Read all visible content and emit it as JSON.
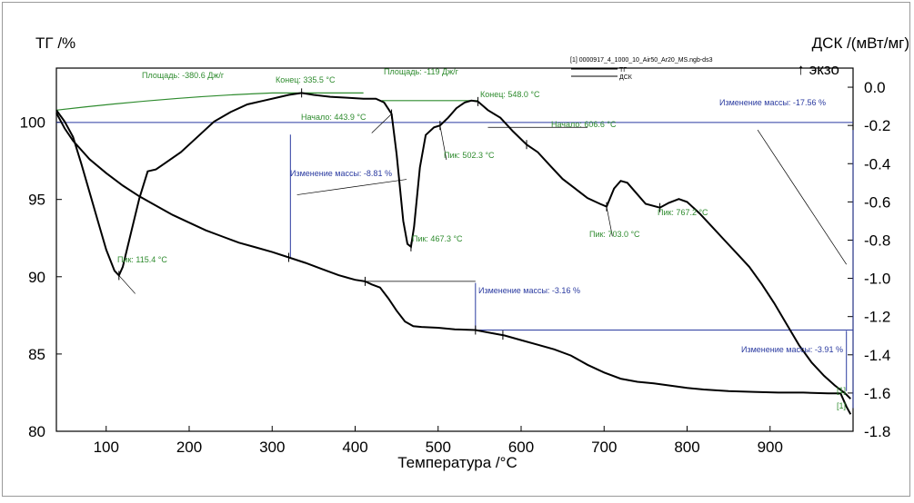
{
  "chart_data": {
    "type": "line",
    "title": "",
    "xlabel": "Температура /°C",
    "ylabel_left": "ТГ /%",
    "ylabel_right": "ДСК /(мВт/мг)",
    "exo_label": "↑ экзо",
    "file_label": "[1] 0000917_4_1000_10_Air50_Ar20_MS.ngb-ds3",
    "legend": [
      "ТГ",
      "ДСК"
    ],
    "xlim": [
      40,
      1000
    ],
    "ylim_left": [
      80,
      103.5
    ],
    "ylim_right": [
      -1.8,
      0.1
    ],
    "x_ticks": [
      100,
      200,
      300,
      400,
      500,
      600,
      700,
      800,
      900
    ],
    "y_left_ticks": [
      80,
      85,
      90,
      95,
      100
    ],
    "y_right_ticks": [
      "0.0",
      "-0.2",
      "-0.4",
      "-0.6",
      "-0.8",
      "-1.0",
      "-1.2",
      "-1.4",
      "-1.6",
      "-1.8"
    ],
    "series": [
      {
        "name": "ТГ",
        "axis": "left",
        "color": "#000000",
        "points": [
          [
            40,
            100.6
          ],
          [
            50,
            99.6
          ],
          [
            60,
            98.8
          ],
          [
            80,
            97.6
          ],
          [
            100,
            96.7
          ],
          [
            120,
            95.9
          ],
          [
            140,
            95.2
          ],
          [
            160,
            94.6
          ],
          [
            180,
            94.0
          ],
          [
            200,
            93.5
          ],
          [
            220,
            93.0
          ],
          [
            240,
            92.6
          ],
          [
            260,
            92.2
          ],
          [
            280,
            91.9
          ],
          [
            300,
            91.6
          ],
          [
            320,
            91.25
          ],
          [
            340,
            90.9
          ],
          [
            360,
            90.5
          ],
          [
            380,
            90.1
          ],
          [
            400,
            89.8
          ],
          [
            412,
            89.7
          ],
          [
            420,
            89.5
          ],
          [
            430,
            89.3
          ],
          [
            440,
            88.6
          ],
          [
            450,
            87.8
          ],
          [
            460,
            87.1
          ],
          [
            470,
            86.8
          ],
          [
            480,
            86.75
          ],
          [
            500,
            86.7
          ],
          [
            520,
            86.6
          ],
          [
            545,
            86.55
          ],
          [
            560,
            86.4
          ],
          [
            580,
            86.2
          ],
          [
            600,
            85.9
          ],
          [
            620,
            85.6
          ],
          [
            640,
            85.3
          ],
          [
            660,
            84.9
          ],
          [
            680,
            84.3
          ],
          [
            700,
            83.8
          ],
          [
            720,
            83.4
          ],
          [
            740,
            83.2
          ],
          [
            760,
            83.1
          ],
          [
            780,
            82.95
          ],
          [
            800,
            82.8
          ],
          [
            820,
            82.7
          ],
          [
            850,
            82.6
          ],
          [
            880,
            82.55
          ],
          [
            910,
            82.5
          ],
          [
            940,
            82.5
          ],
          [
            970,
            82.45
          ],
          [
            985,
            82.45
          ],
          [
            992,
            81.6
          ],
          [
            997,
            81.1
          ]
        ]
      },
      {
        "name": "ДСК",
        "axis": "right",
        "color": "#000000",
        "points": [
          [
            40,
            -0.12
          ],
          [
            50,
            -0.18
          ],
          [
            60,
            -0.26
          ],
          [
            70,
            -0.4
          ],
          [
            80,
            -0.55
          ],
          [
            90,
            -0.7
          ],
          [
            100,
            -0.85
          ],
          [
            110,
            -0.96
          ],
          [
            115.4,
            -0.985
          ],
          [
            120,
            -0.94
          ],
          [
            130,
            -0.76
          ],
          [
            140,
            -0.58
          ],
          [
            150,
            -0.44
          ],
          [
            160,
            -0.43
          ],
          [
            170,
            -0.4
          ],
          [
            190,
            -0.34
          ],
          [
            210,
            -0.26
          ],
          [
            230,
            -0.18
          ],
          [
            250,
            -0.13
          ],
          [
            270,
            -0.09
          ],
          [
            290,
            -0.07
          ],
          [
            310,
            -0.05
          ],
          [
            320,
            -0.04
          ],
          [
            335.5,
            -0.03
          ],
          [
            350,
            -0.04
          ],
          [
            370,
            -0.05
          ],
          [
            390,
            -0.055
          ],
          [
            410,
            -0.06
          ],
          [
            425,
            -0.06
          ],
          [
            435,
            -0.08
          ],
          [
            443.9,
            -0.14
          ],
          [
            450,
            -0.35
          ],
          [
            458,
            -0.7
          ],
          [
            463,
            -0.82
          ],
          [
            467.3,
            -0.835
          ],
          [
            471,
            -0.73
          ],
          [
            478,
            -0.42
          ],
          [
            485,
            -0.25
          ],
          [
            495,
            -0.21
          ],
          [
            502.3,
            -0.2
          ],
          [
            512,
            -0.16
          ],
          [
            522,
            -0.11
          ],
          [
            532,
            -0.08
          ],
          [
            540,
            -0.07
          ],
          [
            548,
            -0.075
          ],
          [
            560,
            -0.12
          ],
          [
            575,
            -0.16
          ],
          [
            590,
            -0.23
          ],
          [
            606.6,
            -0.3
          ],
          [
            620,
            -0.34
          ],
          [
            635,
            -0.41
          ],
          [
            650,
            -0.48
          ],
          [
            665,
            -0.53
          ],
          [
            680,
            -0.58
          ],
          [
            695,
            -0.61
          ],
          [
            703,
            -0.625
          ],
          [
            712,
            -0.53
          ],
          [
            720,
            -0.49
          ],
          [
            728,
            -0.5
          ],
          [
            738,
            -0.55
          ],
          [
            750,
            -0.61
          ],
          [
            767.2,
            -0.63
          ],
          [
            778,
            -0.605
          ],
          [
            790,
            -0.585
          ],
          [
            800,
            -0.6
          ],
          [
            815,
            -0.66
          ],
          [
            830,
            -0.73
          ],
          [
            845,
            -0.8
          ],
          [
            860,
            -0.87
          ],
          [
            875,
            -0.94
          ],
          [
            890,
            -1.03
          ],
          [
            905,
            -1.13
          ],
          [
            920,
            -1.24
          ],
          [
            935,
            -1.35
          ],
          [
            950,
            -1.44
          ],
          [
            965,
            -1.51
          ],
          [
            978,
            -1.56
          ],
          [
            990,
            -1.6
          ],
          [
            997,
            -1.63
          ]
        ]
      }
    ],
    "annotations": {
      "area1": "Площадь: -380.6 Дж/г",
      "area2": "Площадь: -119 Дж/г",
      "end1": "Конец: 335.5 °C",
      "end2": "Конец: 548.0 °C",
      "onset1": "Начало: 443.9 °C",
      "onset2": "Начало: 606.6 °C",
      "peak1": "Пик: 115.4 °C",
      "peak2": "Пик: 467.3 °C",
      "peak3": "Пик: 502.3 °C",
      "peak4": "Пик: 703.0 °C",
      "peak5": "Пик: 767.2 °C",
      "mass1": "Изменение массы: -8.81 %",
      "mass2": "Изменение массы: -3.16 %",
      "mass3": "Изменение массы: -3.91 %",
      "mass_total": "Изменение массы: -17.56 %",
      "curve_id_a": "[1]",
      "curve_id_b": "[1]"
    }
  }
}
